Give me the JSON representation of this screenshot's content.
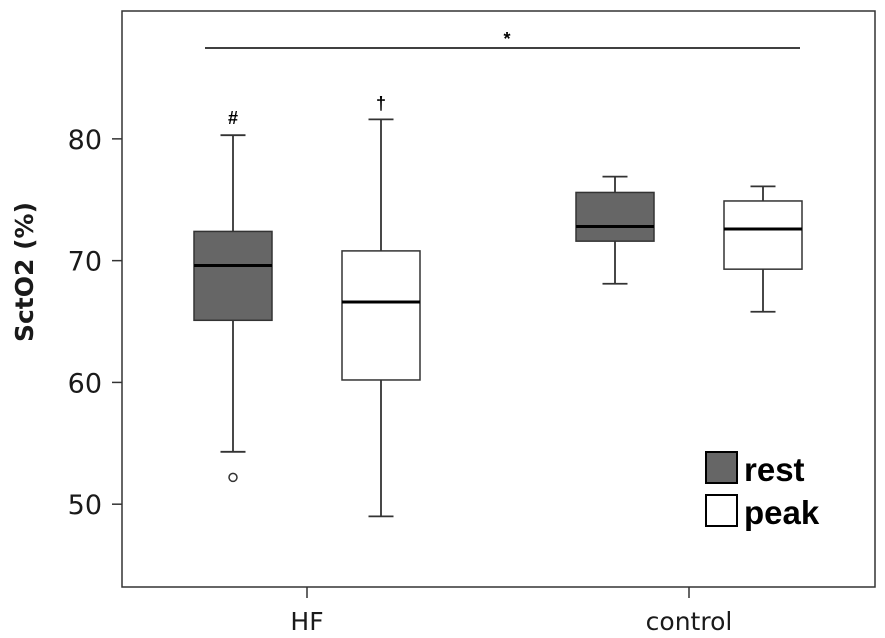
{
  "chart_data": {
    "type": "box",
    "title": "",
    "xlabel": "",
    "ylabel": "SctO2 (%)",
    "ylim": [
      43.2,
      90.5
    ],
    "yticks": [
      50,
      60,
      70,
      80
    ],
    "categories": [
      "HF",
      "control"
    ],
    "series": [
      {
        "name": "rest",
        "color": "#666666",
        "boxes": [
          {
            "category": "HF",
            "whisker_low": 54.3,
            "q1": 65.1,
            "median": 69.6,
            "q3": 72.4,
            "whisker_high": 80.3,
            "outliers": [
              52.2
            ]
          },
          {
            "category": "control",
            "whisker_low": 68.1,
            "q1": 71.6,
            "median": 72.8,
            "q3": 75.6,
            "whisker_high": 76.9,
            "outliers": []
          }
        ]
      },
      {
        "name": "peak",
        "color": "#ffffff",
        "boxes": [
          {
            "category": "HF",
            "whisker_low": 49.0,
            "q1": 60.2,
            "median": 66.6,
            "q3": 70.8,
            "whisker_high": 81.6,
            "outliers": []
          },
          {
            "category": "control",
            "whisker_low": 65.8,
            "q1": 69.3,
            "median": 72.6,
            "q3": 74.9,
            "whisker_high": 76.1,
            "outliers": []
          }
        ]
      }
    ],
    "annotations": {
      "significance_star": "*",
      "hf_rest_mark": "#",
      "hf_peak_mark": "†"
    },
    "legend": {
      "position": "bottom-right",
      "entries": [
        "rest",
        "peak"
      ]
    }
  }
}
